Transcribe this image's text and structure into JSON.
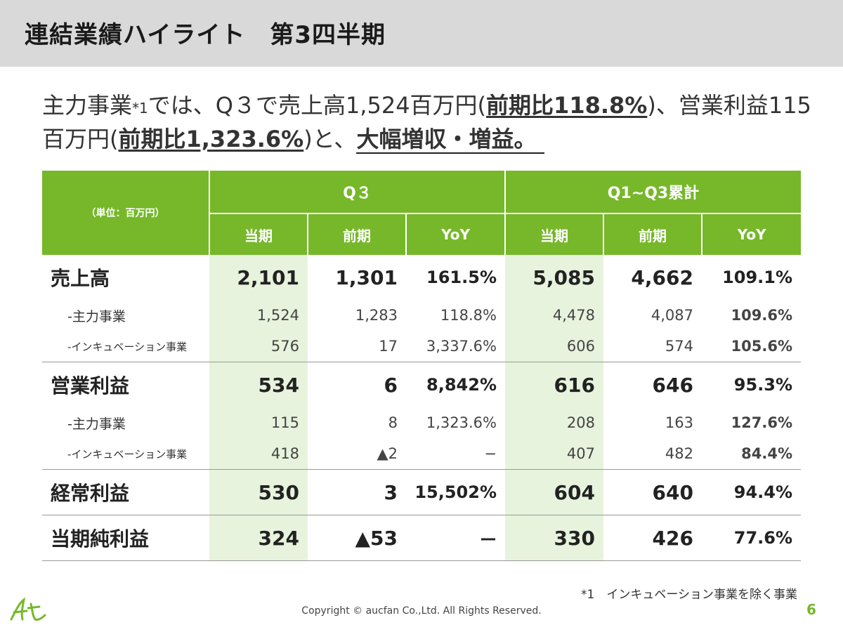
{
  "header": {
    "title": "連結業績ハイライト　第3四半期"
  },
  "lead": {
    "p1": "主力事業",
    "note_mark": "*1",
    "p2": "では、Q３で売上高1,524百万円(",
    "em1": "前期比118.8%",
    "p3": ")、営業利益115百万円(",
    "em2": "前期比1,323.6%",
    "p4": ")と、",
    "em3": "大幅増収・増益。"
  },
  "table": {
    "unit_label": "（単位：百万円）",
    "group_labels": [
      "Q３",
      "Q1~Q3累計"
    ],
    "sub_labels": [
      "当期",
      "前期",
      "YoY",
      "当期",
      "前期",
      "YoY"
    ],
    "rows": [
      {
        "label": "売上高",
        "values": [
          "2,101",
          "1,301",
          "161.5%",
          "5,085",
          "4,662",
          "109.1%"
        ]
      },
      {
        "label": "-主力事業",
        "values": [
          "1,524",
          "1,283",
          "118.8%",
          "4,478",
          "4,087",
          "109.6%"
        ]
      },
      {
        "label": "-インキュベーション事業",
        "values": [
          "576",
          "17",
          "3,337.6%",
          "606",
          "574",
          "105.6%"
        ]
      },
      {
        "label": "営業利益",
        "values": [
          "534",
          "6",
          "8,842%",
          "616",
          "646",
          "95.3%"
        ]
      },
      {
        "label": "-主力事業",
        "values": [
          "115",
          "8",
          "1,323.6%",
          "208",
          "163",
          "127.6%"
        ]
      },
      {
        "label": "-インキュベーション事業",
        "values": [
          "418",
          "▲2",
          "−",
          "407",
          "482",
          "84.4%"
        ]
      },
      {
        "label": "経常利益",
        "values": [
          "530",
          "3",
          "15,502%",
          "604",
          "640",
          "94.4%"
        ]
      },
      {
        "label": "当期純利益",
        "values": [
          "324",
          "▲53",
          "ー",
          "330",
          "426",
          "77.6%"
        ]
      }
    ]
  },
  "footnote": "*1　インキュベーション事業を除く事業",
  "copyright": "Copyright © aucfan Co.,Ltd. All Rights Reserved.",
  "page_number": "6",
  "colors": {
    "accent": "#76b82a",
    "highlight": "#e7f3dd",
    "title_bar": "#d9d9d9"
  },
  "logo": {
    "icon": "aucfan-logo-icon",
    "text": "At"
  }
}
